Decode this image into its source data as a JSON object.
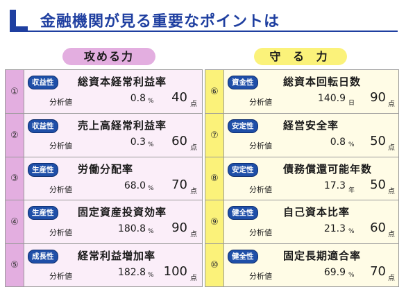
{
  "title": "金融機関が見る重要なポイントは",
  "columns": {
    "left": "攻める力",
    "right": "守 る 力"
  },
  "label": "分析値",
  "left_items": [
    {
      "num": "①",
      "category": "収益性",
      "metric": "総資本経常利益率",
      "value": "0.8",
      "unit": "%",
      "points": "40",
      "points_unit": "点"
    },
    {
      "num": "②",
      "category": "収益性",
      "metric": "売上高経常利益率",
      "value": "0.3",
      "unit": "%",
      "points": "60",
      "points_unit": "点"
    },
    {
      "num": "③",
      "category": "生産性",
      "metric": "労働分配率",
      "value": "68.0",
      "unit": "%",
      "points": "70",
      "points_unit": "点"
    },
    {
      "num": "④",
      "category": "生産性",
      "metric": "固定資産投資効率",
      "value": "180.8",
      "unit": "%",
      "points": "90",
      "points_unit": "点"
    },
    {
      "num": "⑤",
      "category": "成長性",
      "metric": "経常利益増加率",
      "value": "182.8",
      "unit": "%",
      "points": "100",
      "points_unit": "点"
    }
  ],
  "right_items": [
    {
      "num": "⑥",
      "category": "資金性",
      "metric": "総資本回転日数",
      "value": "140.9",
      "unit": "日",
      "points": "90",
      "points_unit": "点"
    },
    {
      "num": "⑦",
      "category": "安定性",
      "metric": "経営安全率",
      "value": "0.8",
      "unit": "%",
      "points": "50",
      "points_unit": "点"
    },
    {
      "num": "⑧",
      "category": "安定性",
      "metric": "債務償還可能年数",
      "value": "17.3",
      "unit": "年",
      "points": "50",
      "points_unit": "点"
    },
    {
      "num": "⑨",
      "category": "健全性",
      "metric": "自己資本比率",
      "value": "21.3",
      "unit": "%",
      "points": "60",
      "points_unit": "点"
    },
    {
      "num": "⑩",
      "category": "健全性",
      "metric": "固定長期適合率",
      "value": "69.9",
      "unit": "%",
      "points": "70",
      "points_unit": "点"
    }
  ],
  "colors": {
    "brand": "#1f3fa0",
    "left_accent": "#e3aee0",
    "right_accent": "#fbf27a",
    "badge": "#1f4fa8"
  }
}
